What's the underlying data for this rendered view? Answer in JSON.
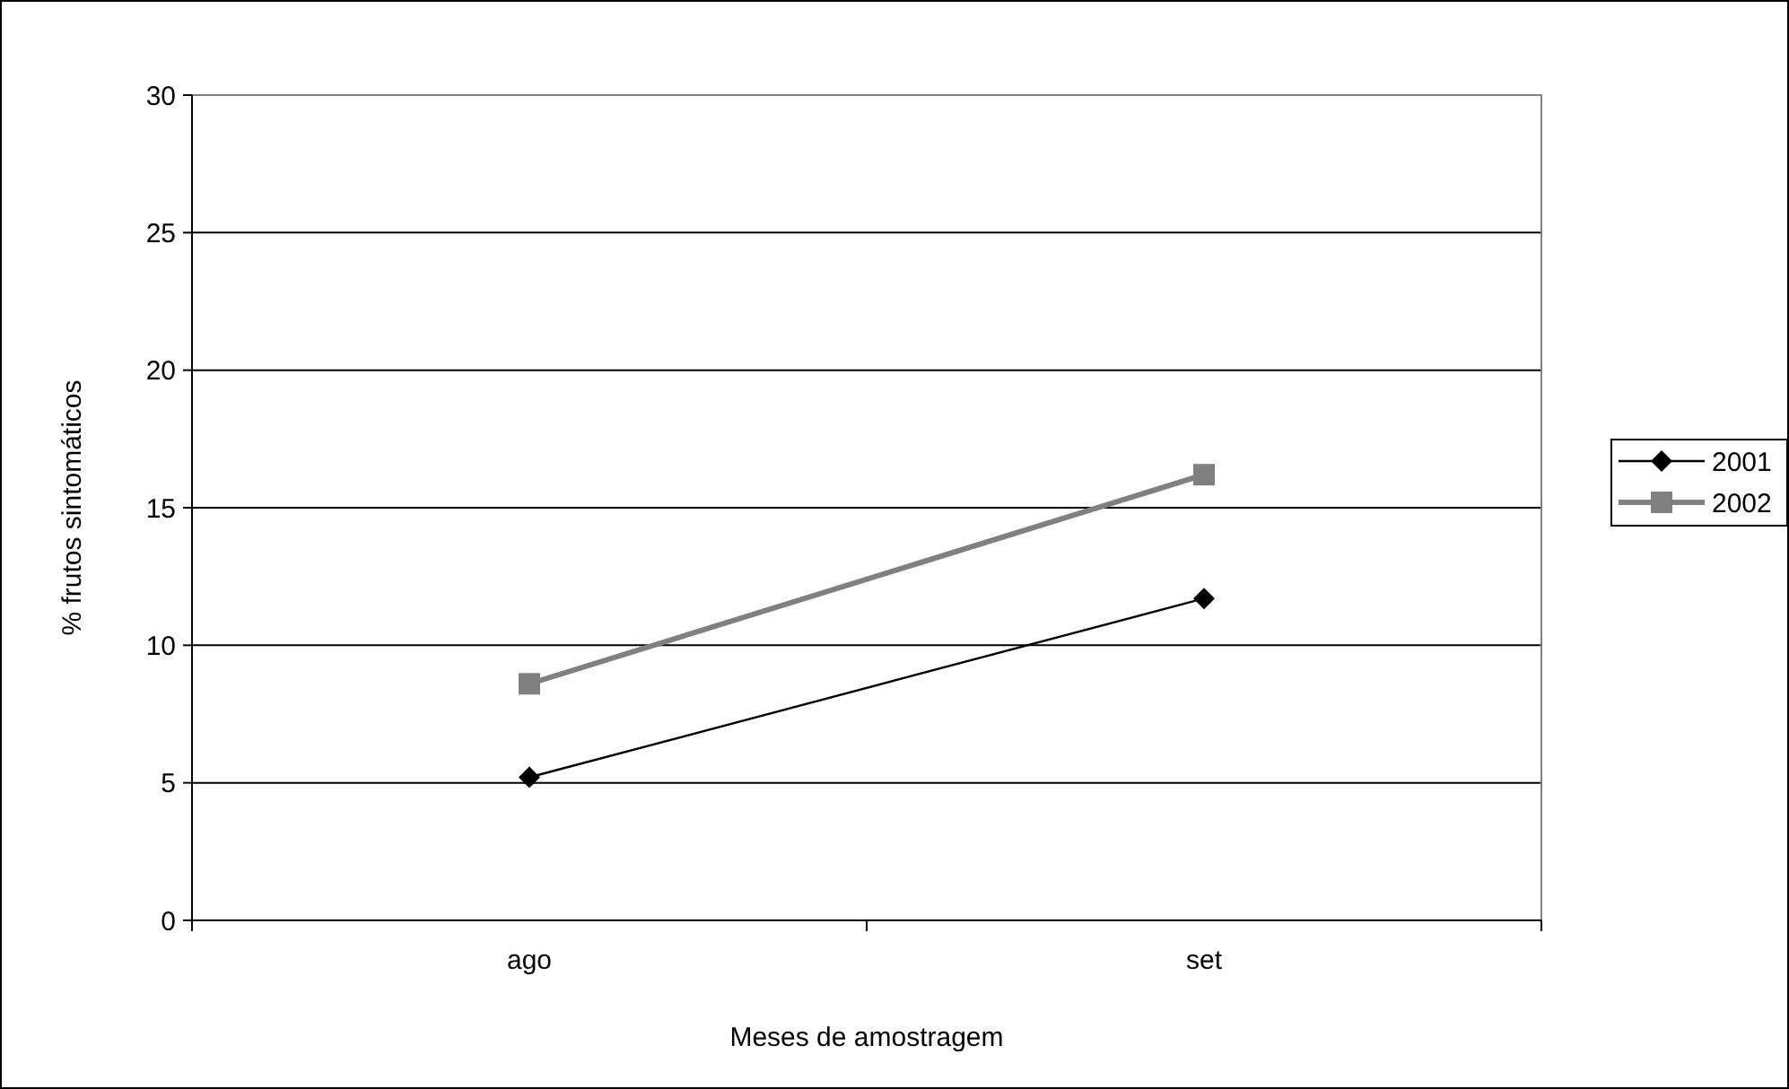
{
  "chart_data": {
    "type": "line",
    "xlabel": "Meses de amostragem",
    "ylabel": "% frutos sintomáticos",
    "categories": [
      "ago",
      "set"
    ],
    "series": [
      {
        "name": "2001",
        "color": "#000000",
        "marker": "diamond",
        "values": [
          5.2,
          11.7
        ]
      },
      {
        "name": "2002",
        "color": "#808080",
        "marker": "square",
        "values": [
          8.6,
          16.2
        ]
      }
    ],
    "ylim": [
      0,
      30
    ],
    "yticks": [
      0,
      5,
      10,
      15,
      20,
      25,
      30
    ],
    "grid": "y",
    "legend": "right"
  }
}
